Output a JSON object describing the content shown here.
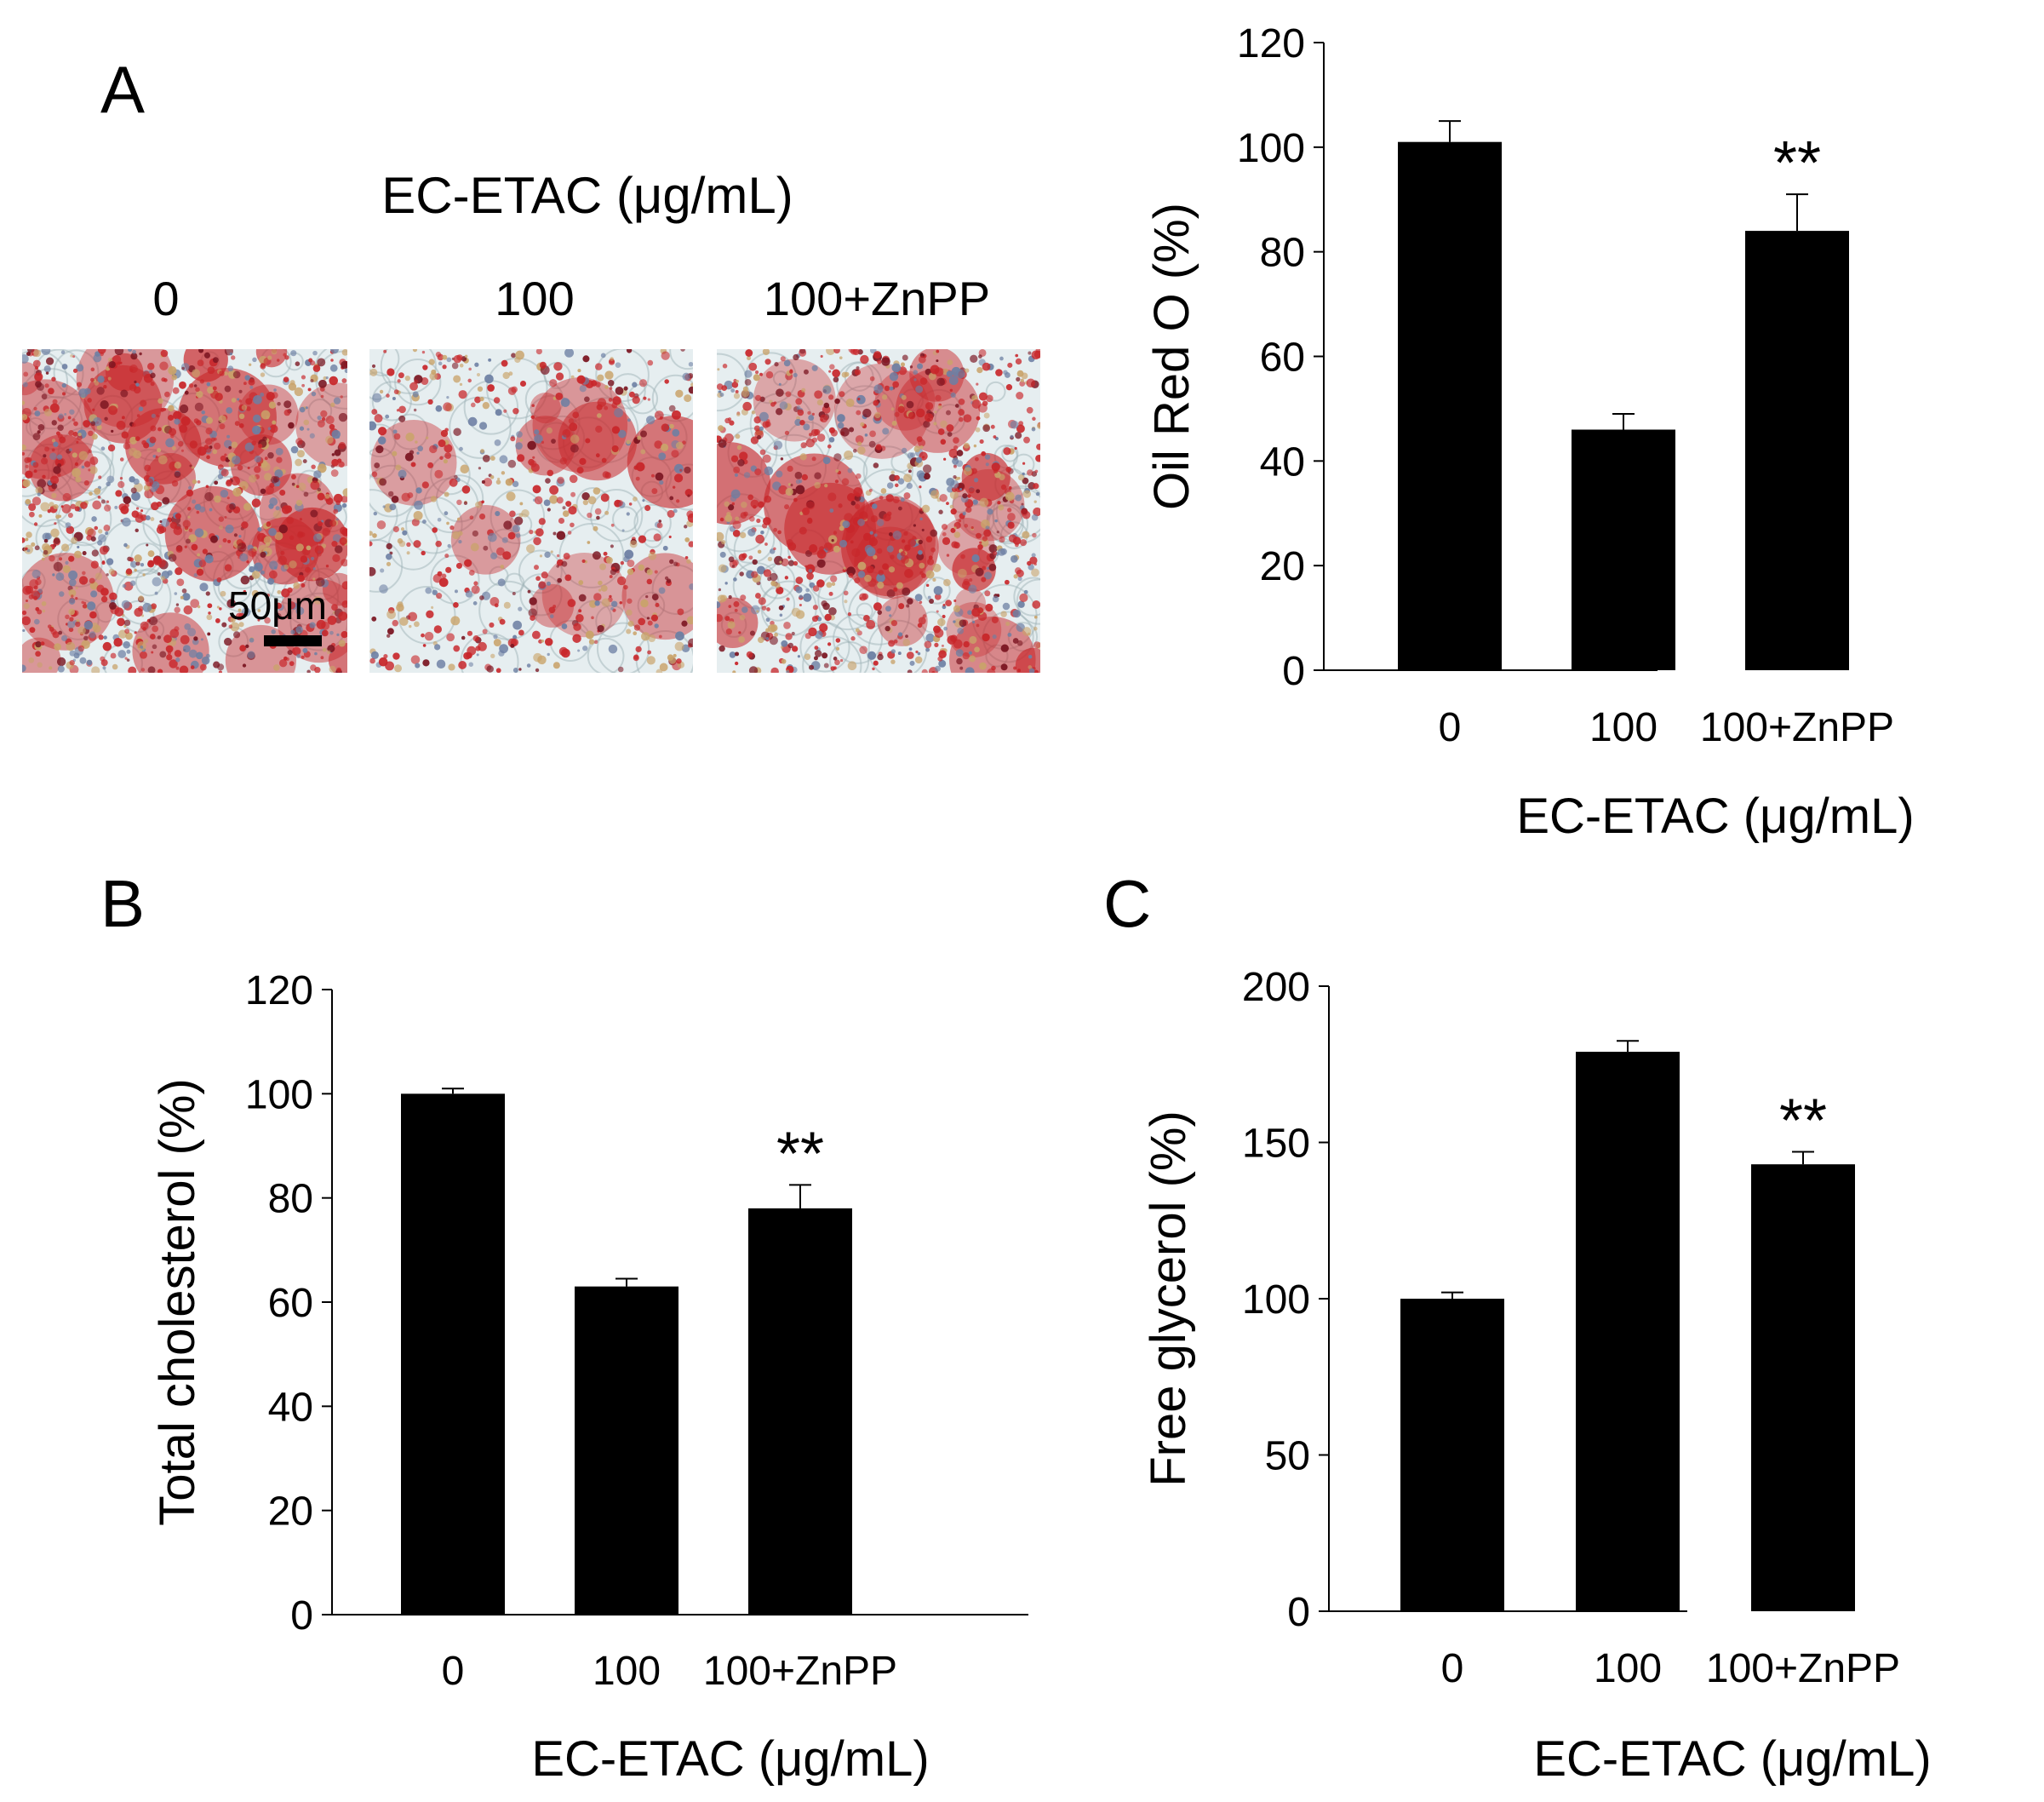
{
  "panels": {
    "a": {
      "letter": "A"
    },
    "b": {
      "letter": "B"
    },
    "c": {
      "letter": "C"
    }
  },
  "micrographs": {
    "header": "EC-ETAC (μg/mL)",
    "labels": [
      "0",
      "100",
      "100+ZnPP"
    ],
    "scale_bar": "50μm"
  },
  "colors": {
    "bar": "#000000",
    "stain_red": "#c8262a",
    "stain_dark": "#7a1420",
    "cell_background": "#e6eef0"
  },
  "chart_data": [
    {
      "id": "oil-red-o",
      "type": "bar",
      "categories": [
        "0",
        "100",
        "100+ZnPP"
      ],
      "values": [
        101,
        46,
        84
      ],
      "errors": [
        4,
        3,
        7
      ],
      "annotations": [
        "",
        "",
        "**"
      ],
      "ylabel": "Oil Red O (%)",
      "xlabel": "EC-ETAC (μg/mL)",
      "ylim": [
        0,
        120
      ],
      "yticks": [
        0,
        20,
        40,
        60,
        80,
        100,
        120
      ]
    },
    {
      "id": "total-cholesterol",
      "type": "bar",
      "categories": [
        "0",
        "100",
        "100+ZnPP"
      ],
      "values": [
        100,
        63,
        78
      ],
      "errors": [
        1,
        1.5,
        4.5
      ],
      "annotations": [
        "",
        "",
        "**"
      ],
      "ylabel": "Total cholesterol (%)",
      "xlabel": "EC-ETAC (μg/mL)",
      "ylim": [
        0,
        120
      ],
      "yticks": [
        0,
        20,
        40,
        60,
        80,
        100,
        120
      ]
    },
    {
      "id": "free-glycerol",
      "type": "bar",
      "categories": [
        "0",
        "100",
        "100+ZnPP"
      ],
      "values": [
        100,
        179,
        143
      ],
      "errors": [
        2,
        3.5,
        4
      ],
      "annotations": [
        "",
        "",
        "**"
      ],
      "ylabel": "Free glycerol (%)",
      "xlabel": "EC-ETAC (μg/mL)",
      "ylim": [
        0,
        200
      ],
      "yticks": [
        0,
        50,
        100,
        150,
        200
      ]
    }
  ]
}
